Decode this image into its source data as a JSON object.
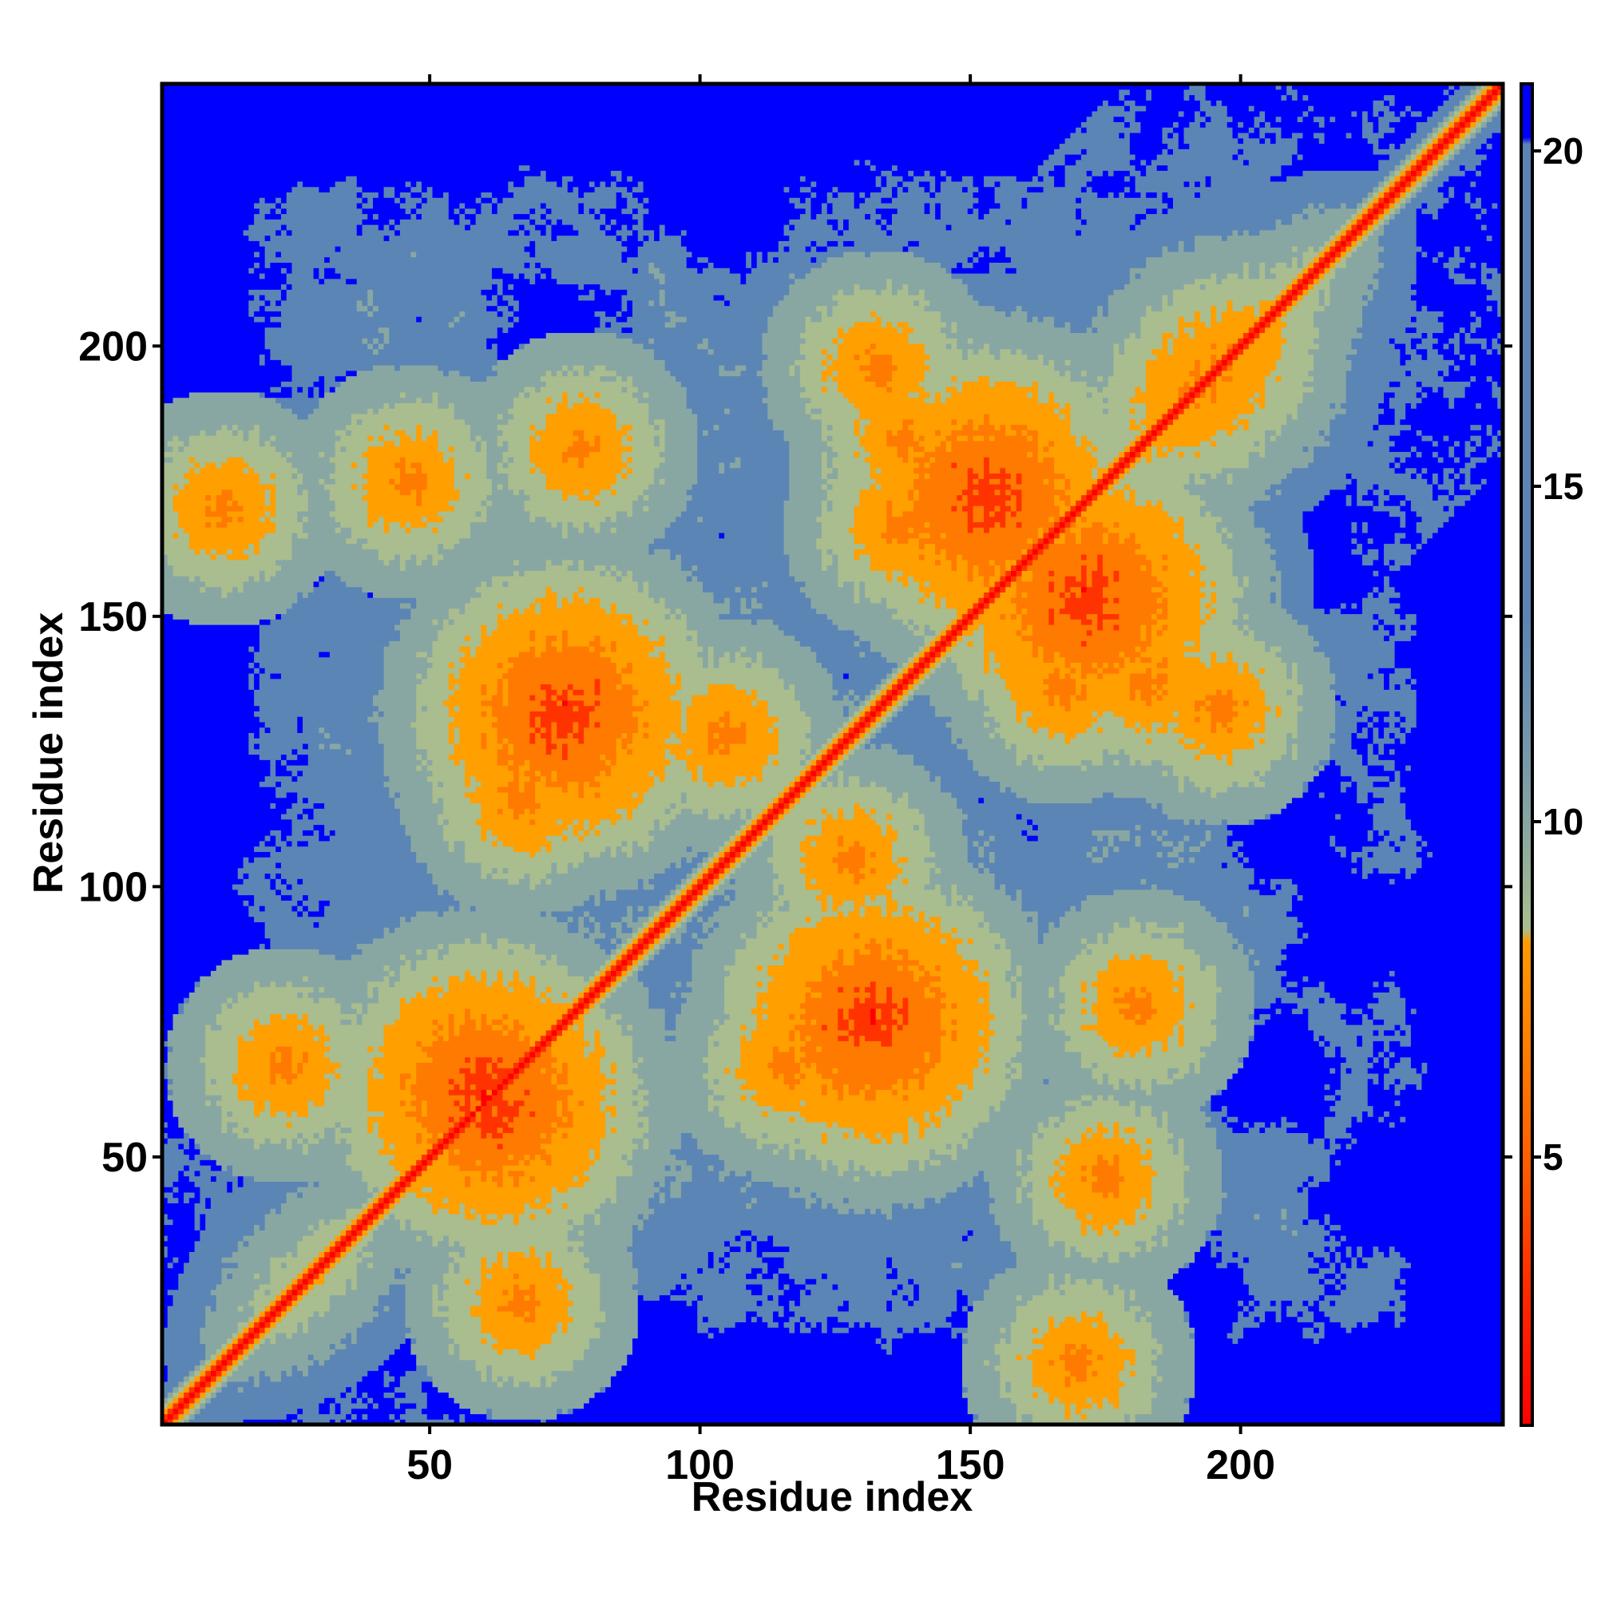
{
  "chart_data": {
    "type": "heatmap",
    "title": "",
    "xlabel": "Residue index",
    "ylabel": "Residue index",
    "xlim": [
      1,
      248
    ],
    "ylim": [
      1,
      248
    ],
    "n_residues": 248,
    "x_ticks": [
      50,
      100,
      150,
      200
    ],
    "y_ticks": [
      50,
      100,
      150,
      200
    ],
    "colorbar": {
      "range": [
        1,
        21
      ],
      "ticks": [
        5,
        10,
        15,
        20
      ],
      "colors": [
        "#ff0000",
        "#ff8c00",
        "#a9bd8f",
        "#5b85b5",
        "#0000ff"
      ]
    },
    "bands": [
      {
        "a": 43,
        "b": 13
      },
      {
        "a": 60,
        "b": 62
      },
      {
        "a": 96,
        "b": 16
      },
      {
        "a": 99,
        "b": 39
      },
      {
        "a": 75,
        "b": 132
      },
      {
        "a": 175,
        "b": 22
      },
      {
        "a": 153,
        "b": 172
      },
      {
        "a": 180,
        "b": 116
      },
      {
        "a": 221,
        "b": 191
      },
      {
        "a": 227,
        "b": 159
      },
      {
        "a": 202,
        "b": 186
      },
      {
        "a": 204,
        "b": 171
      }
    ],
    "blobs": [
      {
        "x": 175,
        "y": 46
      },
      {
        "x": 170,
        "y": 12
      },
      {
        "x": 78,
        "y": 181
      },
      {
        "x": 116,
        "y": 67
      },
      {
        "x": 167,
        "y": 137
      },
      {
        "x": 128,
        "y": 105
      },
      {
        "x": 183,
        "y": 138
      },
      {
        "x": 196,
        "y": 133
      },
      {
        "x": 67,
        "y": 23
      }
    ],
    "holes": [
      {
        "x": 103,
        "y": 226
      },
      {
        "x": 72,
        "y": 204
      },
      {
        "x": 128,
        "y": 158
      },
      {
        "x": 68,
        "y": 161
      },
      {
        "x": 160,
        "y": 130
      },
      {
        "x": 210,
        "y": 111
      },
      {
        "x": 220,
        "y": 90
      },
      {
        "x": 205,
        "y": 65
      },
      {
        "x": 155,
        "y": 60
      },
      {
        "x": 186,
        "y": 27
      },
      {
        "x": 152,
        "y": 203
      },
      {
        "x": 213,
        "y": 163
      },
      {
        "x": 219,
        "y": 224
      },
      {
        "x": 90,
        "y": 10
      },
      {
        "x": 225,
        "y": 45
      },
      {
        "x": 57,
        "y": 152
      }
    ]
  }
}
